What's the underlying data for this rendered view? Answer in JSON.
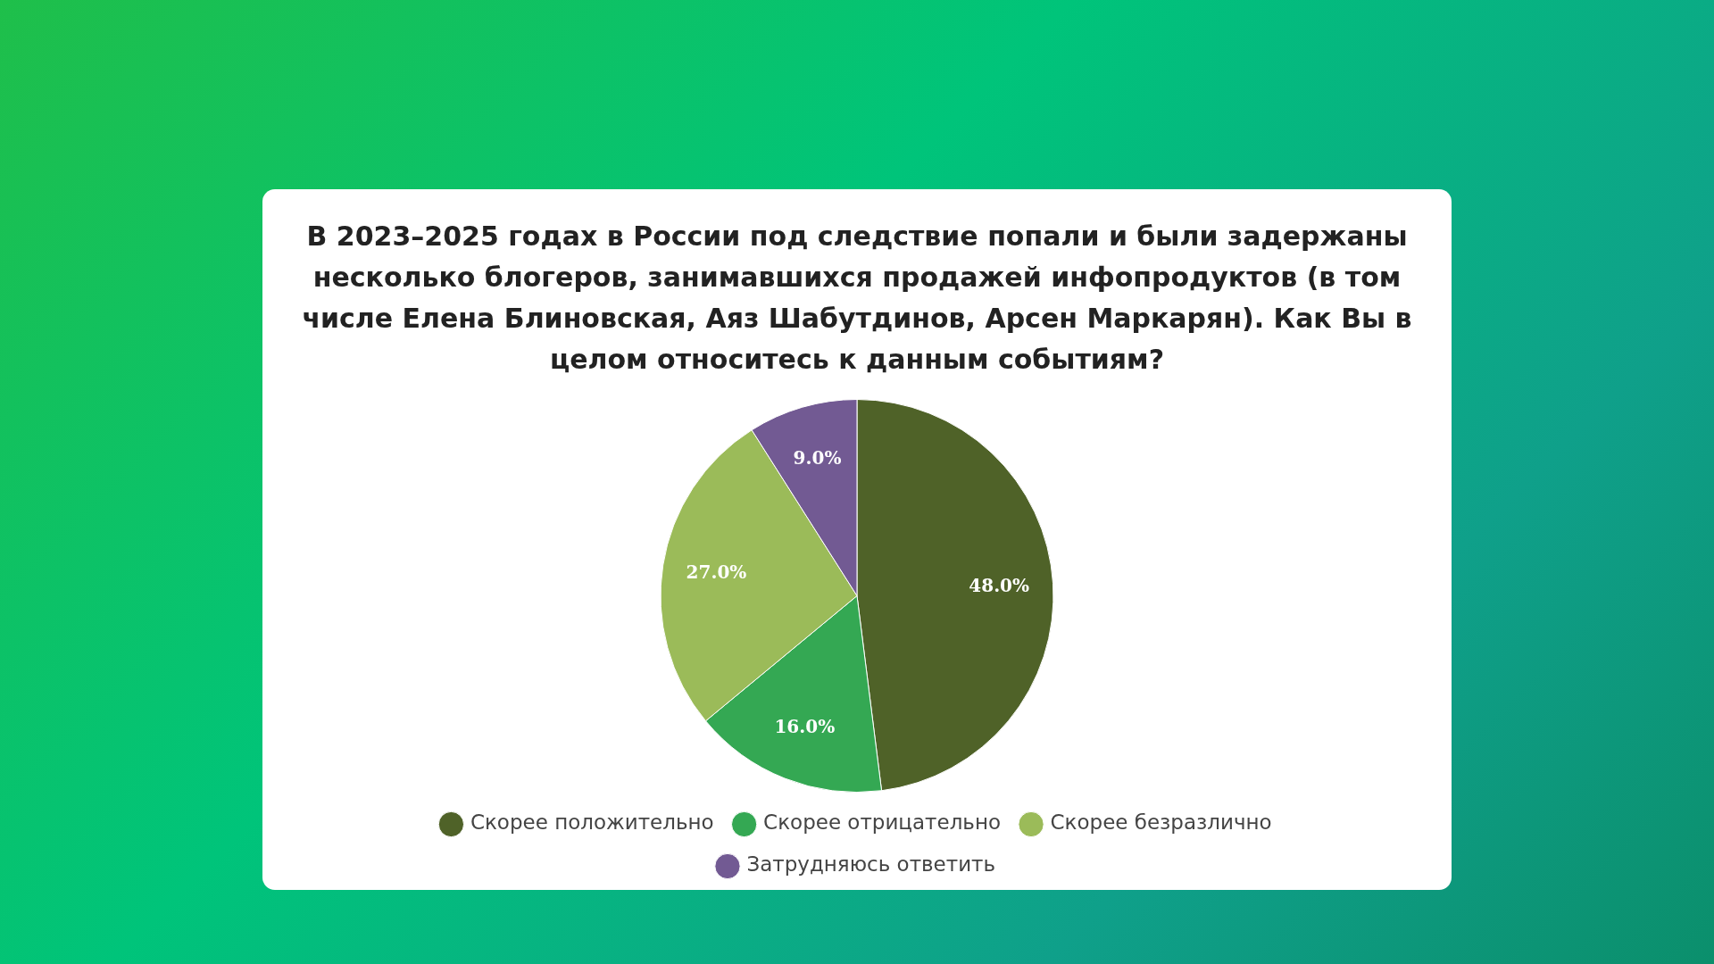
{
  "chart_data": {
    "type": "pie",
    "title": "В 2023–2025 годах в России под следствие попали и были задержаны несколько блогеров, занимавшихся продажей инфопродуктов (в том числе Елена Блиновская, Аяз Шабутдинов, Арсен Маркарян). Как Вы в целом относитесь к данным событиям?",
    "categories": [
      "Скорее положительно",
      "Скорее отрицательно",
      "Скорее безразлично",
      "Затрудняюсь ответить"
    ],
    "values": [
      48,
      16,
      27,
      9
    ],
    "value_labels": [
      "48.0%",
      "16.0%",
      "27.0%",
      "9.0%"
    ],
    "colors": [
      "#4f6228",
      "#34a853",
      "#9bbb59",
      "#725a93"
    ],
    "legend": "bottom"
  }
}
